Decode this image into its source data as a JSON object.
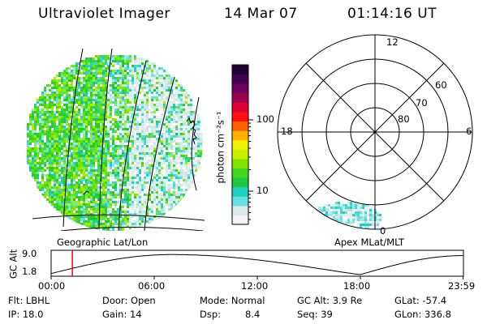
{
  "header": {
    "title": "Ultraviolet Imager",
    "date": "14 Mar 07",
    "time": "01:14:16 UT"
  },
  "left_panel": {
    "caption": "Geographic Lat/Lon"
  },
  "right_panel": {
    "caption": "Apex MLat/MLT",
    "mlt_labels": {
      "top": "12",
      "left": "18",
      "right": "6",
      "bottom": "0"
    },
    "lat_labels": [
      "60",
      "70",
      "80"
    ]
  },
  "colorbar": {
    "unit_label": "photon cm⁻²s⁻¹",
    "ticks": [
      {
        "label": "100",
        "value": 100
      },
      {
        "label": "10",
        "value": 10
      }
    ],
    "colors": [
      "#f2f2f2",
      "#d8eaea",
      "#66e0e0",
      "#20d0c0",
      "#20c840",
      "#40d820",
      "#80e800",
      "#c8f000",
      "#f0f000",
      "#ffb000",
      "#ff6000",
      "#ff1010",
      "#e00030",
      "#a00050",
      "#700060",
      "#400050",
      "#200030"
    ]
  },
  "orbit": {
    "axis_label": "GC Alt",
    "y_ticks": [
      "9.0",
      "1.8"
    ],
    "ylim": [
      1.8,
      9.0
    ],
    "x_ticks": [
      "00:00",
      "06:00",
      "12:00",
      "18:00",
      "23:59"
    ],
    "marker_time": "01:14",
    "marker_color": "#ff0000",
    "peaks_hours": [
      7.0,
      18.0
    ],
    "dip_hours": [
      18.0
    ]
  },
  "info": {
    "filter": "Flt: LBHL",
    "ip": "IP: 18.0",
    "door": "Door: Open",
    "gain": "Gain: 14",
    "mode": "Mode: Normal",
    "dsp_label": "Dsp:",
    "dsp_value": "8.4",
    "gc_alt": "GC Alt: 3.9 Re",
    "seq": "Seq: 39",
    "glat": "GLat: -57.4",
    "glon": "GLon: 336.8"
  }
}
